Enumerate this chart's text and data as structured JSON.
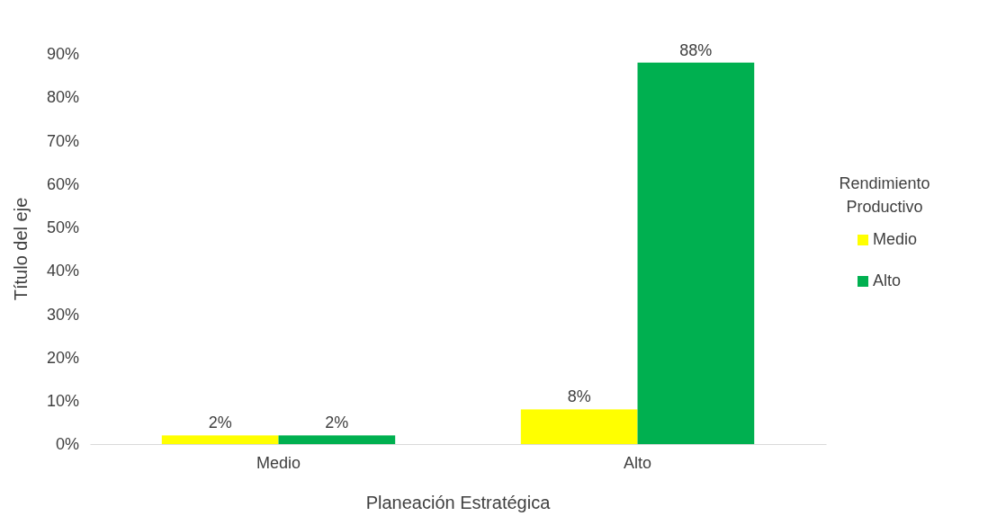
{
  "chart_data": {
    "type": "bar",
    "xlabel": "Planeación Estratégica",
    "ylabel": "Título del eje",
    "legend_title": "Rendimiento Productivo",
    "categories": [
      "Medio",
      "Alto"
    ],
    "series": [
      {
        "name": "Medio",
        "color": "#ffff00",
        "values": [
          2,
          8
        ],
        "value_labels": [
          "2%",
          "8%"
        ]
      },
      {
        "name": "Alto",
        "color": "#00b050",
        "values": [
          2,
          88
        ],
        "value_labels": [
          "2%",
          "88%"
        ]
      }
    ],
    "ylim": [
      0,
      90
    ],
    "yticks": [
      {
        "value": 0,
        "label": "0%"
      },
      {
        "value": 10,
        "label": "10%"
      },
      {
        "value": 20,
        "label": "20%"
      },
      {
        "value": 30,
        "label": "30%"
      },
      {
        "value": 40,
        "label": "40%"
      },
      {
        "value": 50,
        "label": "50%"
      },
      {
        "value": 60,
        "label": "60%"
      },
      {
        "value": 70,
        "label": "70%"
      },
      {
        "value": 80,
        "label": "80%"
      },
      {
        "value": 90,
        "label": "90%"
      }
    ],
    "legend": "right",
    "grid": false
  }
}
